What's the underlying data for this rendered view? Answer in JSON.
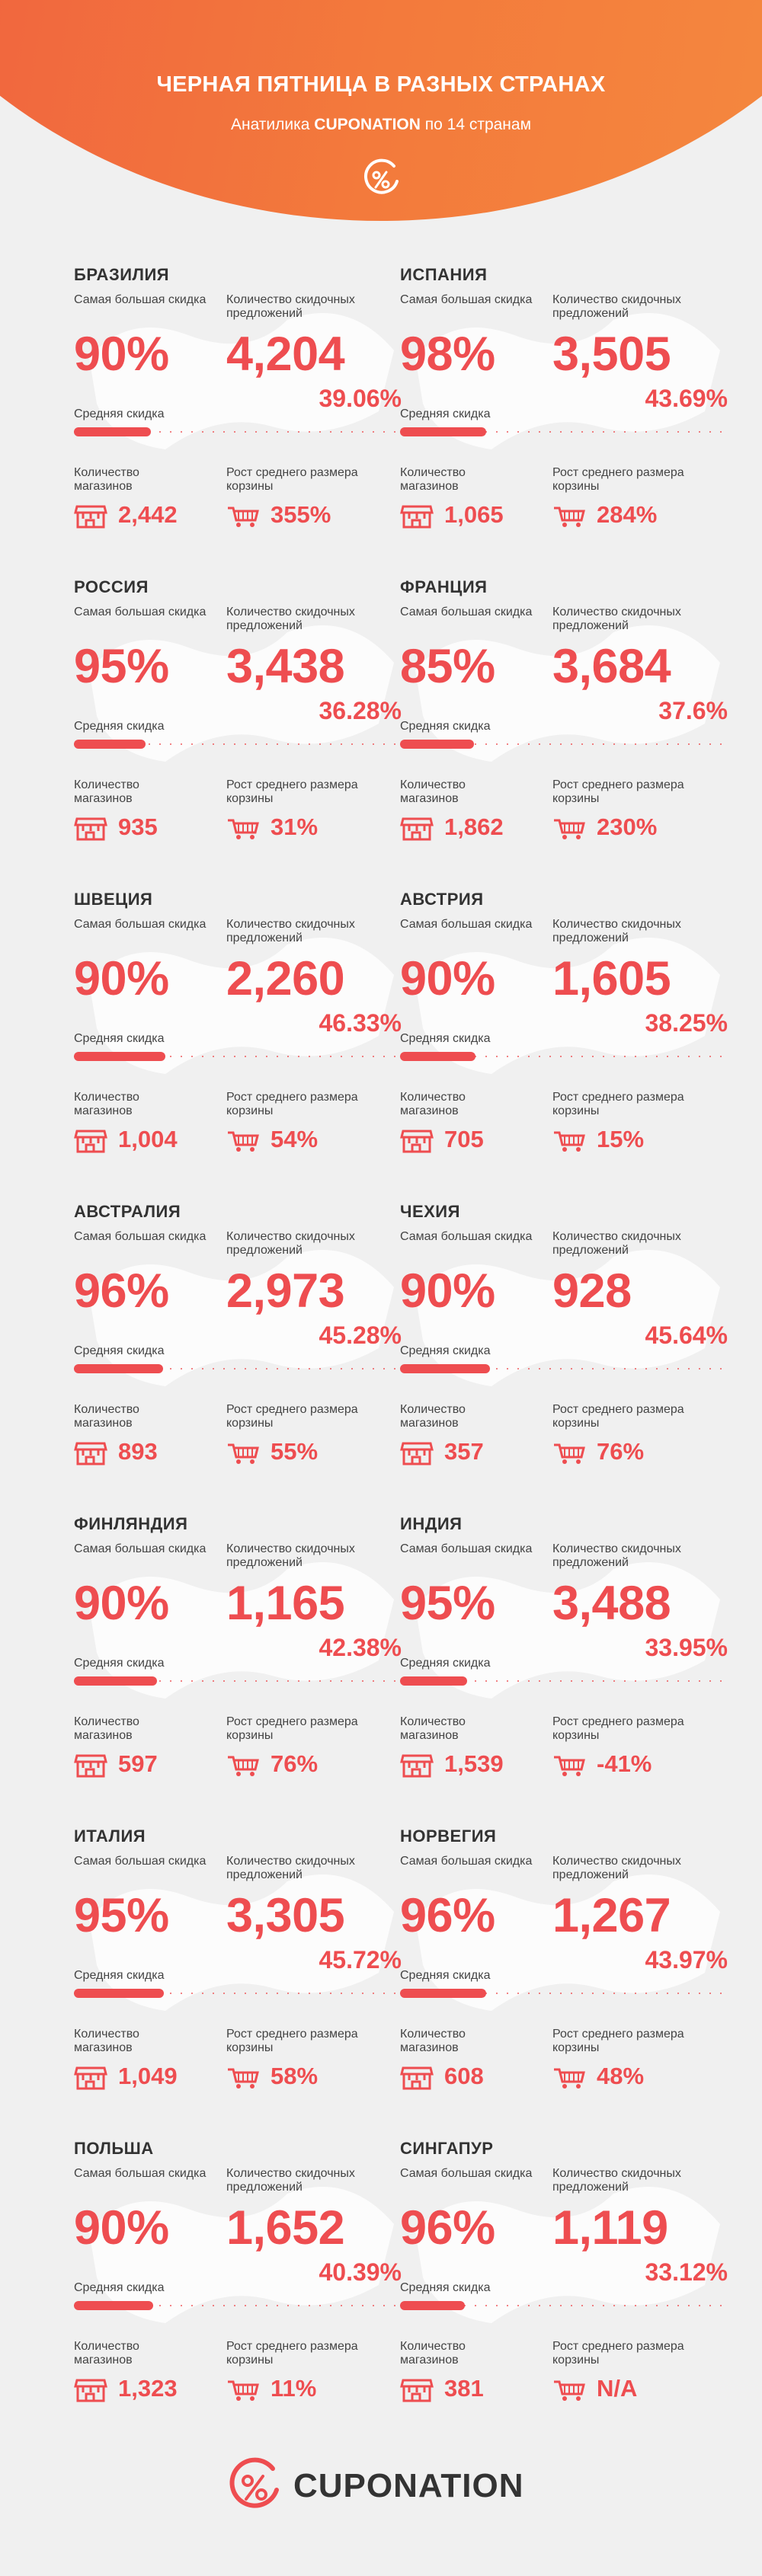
{
  "header": {
    "title": "ЧЕРНАЯ ПЯТНИЦА В РАЗНЫХ СТРАНАХ",
    "subtitle_pre": "Анатилика ",
    "subtitle_brand_a": "CUPO",
    "subtitle_brand_b": "NATION",
    "subtitle_post": " по 14 странам"
  },
  "labels": {
    "max_discount": "Самая большая скидка",
    "offers": "Количество скидочных предложений",
    "avg_discount": "Средняя скидка",
    "stores": "Количество магазинов",
    "basket_growth": "Рост среднего размера корзины"
  },
  "icons": {
    "store": "store-icon",
    "cart": "shopping-cart-icon",
    "logo": "percent-logo-icon"
  },
  "colors": {
    "accent": "#ee4d50",
    "header_gradient_start": "#ef5840",
    "header_gradient_end": "#f58d3f"
  },
  "countries": [
    {
      "name": "БРАЗИЛИЯ",
      "max_discount": "90%",
      "offers": "4,204",
      "avg_discount": "39.06%",
      "avg_value": 39.06,
      "stores": "2,442",
      "basket_growth": "355%"
    },
    {
      "name": "ИСПАНИЯ",
      "max_discount": "98%",
      "offers": "3,505",
      "avg_discount": "43.69%",
      "avg_value": 43.69,
      "stores": "1,065",
      "basket_growth": "284%"
    },
    {
      "name": "РОССИЯ",
      "max_discount": "95%",
      "offers": "3,438",
      "avg_discount": "36.28%",
      "avg_value": 36.28,
      "stores": "935",
      "basket_growth": "31%"
    },
    {
      "name": "ФРАНЦИЯ",
      "max_discount": "85%",
      "offers": "3,684",
      "avg_discount": "37.6%",
      "avg_value": 37.6,
      "stores": "1,862",
      "basket_growth": "230%"
    },
    {
      "name": "ШВЕЦИЯ",
      "max_discount": "90%",
      "offers": "2,260",
      "avg_discount": "46.33%",
      "avg_value": 46.33,
      "stores": "1,004",
      "basket_growth": "54%"
    },
    {
      "name": "АВСТРИЯ",
      "max_discount": "90%",
      "offers": "1,605",
      "avg_discount": "38.25%",
      "avg_value": 38.25,
      "stores": "705",
      "basket_growth": "15%"
    },
    {
      "name": "АВСТРАЛИЯ",
      "max_discount": "96%",
      "offers": "2,973",
      "avg_discount": "45.28%",
      "avg_value": 45.28,
      "stores": "893",
      "basket_growth": "55%"
    },
    {
      "name": "ЧЕХИЯ",
      "max_discount": "90%",
      "offers": "928",
      "avg_discount": "45.64%",
      "avg_value": 45.64,
      "stores": "357",
      "basket_growth": "76%"
    },
    {
      "name": "ФИНЛЯНДИЯ",
      "max_discount": "90%",
      "offers": "1,165",
      "avg_discount": "42.38%",
      "avg_value": 42.38,
      "stores": "597",
      "basket_growth": "76%"
    },
    {
      "name": "ИНДИЯ",
      "max_discount": "95%",
      "offers": "3,488",
      "avg_discount": "33.95%",
      "avg_value": 33.95,
      "stores": "1,539",
      "basket_growth": "-41%"
    },
    {
      "name": "ИТАЛИЯ",
      "max_discount": "95%",
      "offers": "3,305",
      "avg_discount": "45.72%",
      "avg_value": 45.72,
      "stores": "1,049",
      "basket_growth": "58%"
    },
    {
      "name": "НОРВЕГИЯ",
      "max_discount": "96%",
      "offers": "1,267",
      "avg_discount": "43.97%",
      "avg_value": 43.97,
      "stores": "608",
      "basket_growth": "48%"
    },
    {
      "name": "ПОЛЬША",
      "max_discount": "90%",
      "offers": "1,652",
      "avg_discount": "40.39%",
      "avg_value": 40.39,
      "stores": "1,323",
      "basket_growth": "11%"
    },
    {
      "name": "СИНГАПУР",
      "max_discount": "96%",
      "offers": "1,119",
      "avg_discount": "33.12%",
      "avg_value": 33.12,
      "stores": "381",
      "basket_growth": "N/A"
    }
  ],
  "footer": {
    "brand_a": "CUPO",
    "brand_b": "NATION"
  }
}
